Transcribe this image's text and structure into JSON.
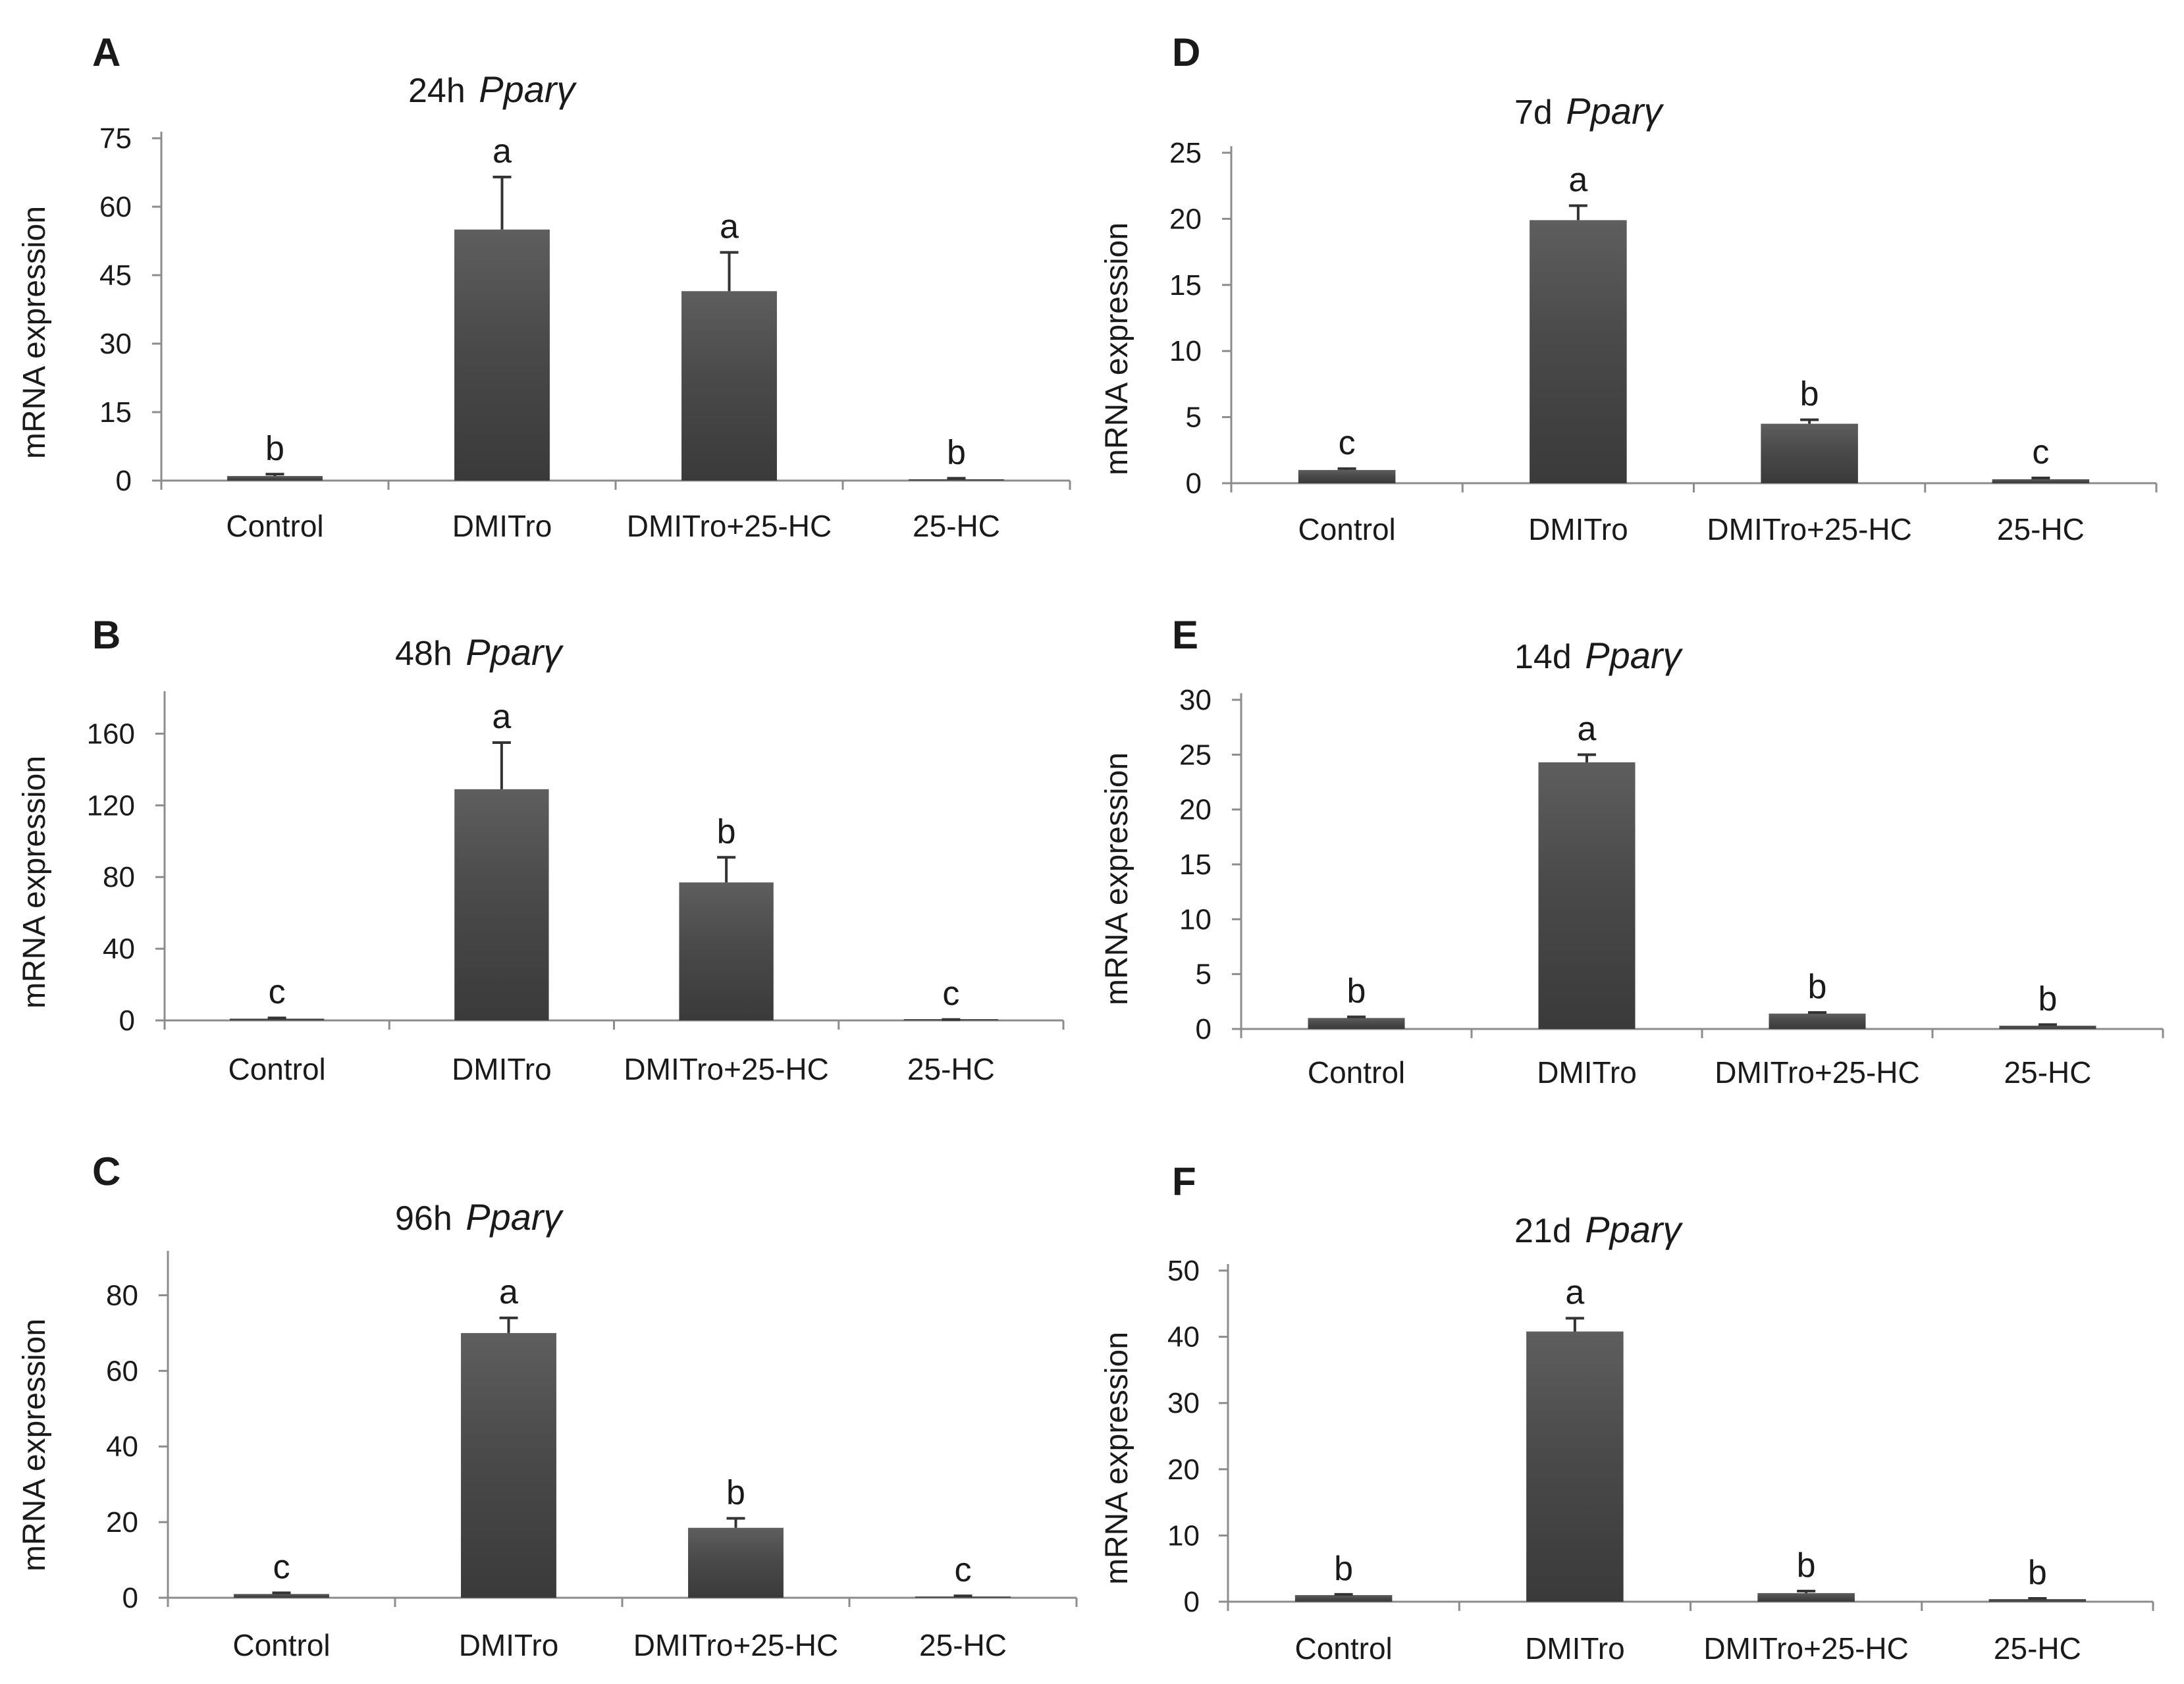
{
  "figure": {
    "ylabel_common": "mRNA expression"
  },
  "colors": {
    "bar_dark": "#3c3c3c",
    "bar_mid": "#5e5e5e",
    "bar_light": "#7a7a7a",
    "axis": "#8c8c8c",
    "text": "#1a1a1a"
  },
  "chart_data": [
    {
      "panel": "A",
      "type": "bar",
      "title_prefix": "24h",
      "title_gene": "Pparγ",
      "ylabel": "mRNA expression",
      "xlabel": "",
      "categories": [
        "Control",
        "DMITro",
        "DMITro+25-HC",
        "25-HC"
      ],
      "values": [
        1,
        55,
        41.5,
        0.3
      ],
      "errors": [
        0.4,
        11.5,
        8.5,
        0.2
      ],
      "significance": [
        "b",
        "a",
        "a",
        "b"
      ],
      "yticks": [
        "0",
        "15",
        "30",
        "45",
        "60",
        "75"
      ],
      "ylim": [
        0,
        75
      ]
    },
    {
      "panel": "B",
      "type": "bar",
      "title_prefix": "48h",
      "title_gene": "Pparγ",
      "ylabel": "mRNA expression",
      "xlabel": "",
      "categories": [
        "Control",
        "DMITro",
        "DMITro+25-HC",
        "25-HC"
      ],
      "values": [
        1,
        129,
        77,
        0.3
      ],
      "errors": [
        0.4,
        26,
        14,
        0.2
      ],
      "significance": [
        "c",
        "a",
        "b",
        "c"
      ],
      "yticks": [
        "0",
        "40",
        "80",
        "120",
        "160"
      ],
      "ylim": [
        0,
        180
      ]
    },
    {
      "panel": "C",
      "type": "bar",
      "title_prefix": "96h",
      "title_gene": "Pparγ",
      "ylabel": "mRNA expression",
      "xlabel": "",
      "categories": [
        "Control",
        "DMITro",
        "DMITro+25-HC",
        "25-HC"
      ],
      "values": [
        1,
        70,
        18.5,
        0.3
      ],
      "errors": [
        0.3,
        4,
        2.5,
        0.2
      ],
      "significance": [
        "c",
        "a",
        "b",
        "c"
      ],
      "yticks": [
        "0",
        "20",
        "40",
        "60",
        "80"
      ],
      "ylim": [
        0,
        90
      ]
    },
    {
      "panel": "D",
      "type": "bar",
      "title_prefix": "7d",
      "title_gene": "Pparγ",
      "ylabel": "mRNA expression",
      "xlabel": "",
      "categories": [
        "Control",
        "DMITro",
        "DMITro+25-HC",
        "25-HC"
      ],
      "values": [
        1,
        19.9,
        4.5,
        0.3
      ],
      "errors": [
        0.1,
        1.1,
        0.3,
        0.1
      ],
      "significance": [
        "c",
        "a",
        "b",
        "c"
      ],
      "yticks": [
        "0",
        "5",
        "10",
        "15",
        "20",
        "25"
      ],
      "ylim": [
        0,
        25
      ]
    },
    {
      "panel": "E",
      "type": "bar",
      "title_prefix": "14d",
      "title_gene": "Pparγ",
      "ylabel": "mRNA expression",
      "xlabel": "",
      "categories": [
        "Control",
        "DMITro",
        "DMITro+25-HC",
        "25-HC"
      ],
      "values": [
        1,
        24.3,
        1.4,
        0.3
      ],
      "errors": [
        0.1,
        0.7,
        0.1,
        0.1
      ],
      "significance": [
        "b",
        "a",
        "b",
        "b"
      ],
      "yticks": [
        "0",
        "5",
        "10",
        "15",
        "20",
        "25",
        "30"
      ],
      "ylim": [
        0,
        30
      ]
    },
    {
      "panel": "F",
      "type": "bar",
      "title_prefix": "21d",
      "title_gene": "Pparγ",
      "ylabel": "mRNA expression",
      "xlabel": "",
      "categories": [
        "Control",
        "DMITro",
        "DMITro+25-HC",
        "25-HC"
      ],
      "values": [
        1,
        40.8,
        1.3,
        0.4
      ],
      "errors": [
        0.1,
        2,
        0.3,
        0.1
      ],
      "significance": [
        "b",
        "a",
        "b",
        "b"
      ],
      "yticks": [
        "0",
        "10",
        "20",
        "30",
        "40",
        "50"
      ],
      "ylim": [
        0,
        50
      ]
    }
  ]
}
